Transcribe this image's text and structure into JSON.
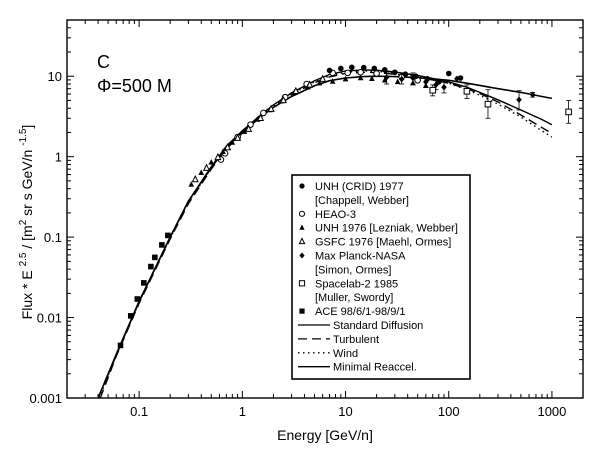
{
  "chart_data": {
    "type": "scatter",
    "x_scale": "log",
    "y_scale": "log",
    "xlim": [
      0.02,
      2000
    ],
    "ylim": [
      0.001,
      50
    ],
    "grid": false,
    "xlabel": "Energy [GeV/n]",
    "ylabel": {
      "pre": "Flux * E ",
      "exp1": "2.5",
      "mid": " / [m",
      "exp2": "2",
      "post": " sr s GeV/n ",
      "exp3": "-1.5",
      "close": "]"
    },
    "x_ticks": [
      {
        "value": 0.1,
        "label": "0.1"
      },
      {
        "value": 1,
        "label": "1"
      },
      {
        "value": 10,
        "label": "10"
      },
      {
        "value": 100,
        "label": "100"
      },
      {
        "value": 1000,
        "label": "1000"
      }
    ],
    "y_ticks": [
      {
        "value": 0.001,
        "label": "0.001"
      },
      {
        "value": 0.01,
        "label": "0.01"
      },
      {
        "value": 0.1,
        "label": "0.1"
      },
      {
        "value": 1,
        "label": "1"
      },
      {
        "value": 10,
        "label": "10"
      }
    ],
    "annotations": {
      "element": "C",
      "phi_symbol": "Φ",
      "phi_value": "=500 M"
    },
    "legend_position": "lower-right",
    "legend": [
      {
        "label": "UNH (CRID) 1977",
        "marker": "circle-filled"
      },
      {
        "label": "[Chappell, Webber]",
        "marker": "none"
      },
      {
        "label": "HEAO-3",
        "marker": "circle-open"
      },
      {
        "label": "UNH 1976 [Lezniak, Webber]",
        "marker": "triangle-filled"
      },
      {
        "label": "GSFC 1976 [Maehl, Ormes]",
        "marker": "triangle-open"
      },
      {
        "label": "Max Planck-NASA",
        "marker": "diamond-filled"
      },
      {
        "label": "[Simon, Ormes]",
        "marker": "none"
      },
      {
        "label": "Spacelab-2 1985",
        "marker": "square-open"
      },
      {
        "label": "[Muller, Swordy]",
        "marker": "none"
      },
      {
        "label": "ACE 98/6/1-98/9/1",
        "marker": "square-filled"
      },
      {
        "label": "Standard Diffusion",
        "marker": "line-solid"
      },
      {
        "label": "Turbulent",
        "marker": "line-dashed"
      },
      {
        "label": "Wind",
        "marker": "line-dotted"
      },
      {
        "label": "Minimal Reaccel.",
        "marker": "line-solid"
      }
    ],
    "series": [
      {
        "marker": "square-filled",
        "points": [
          [
            0.066,
            0.0045
          ],
          [
            0.083,
            0.0105
          ],
          [
            0.096,
            0.017
          ],
          [
            0.111,
            0.027
          ],
          [
            0.13,
            0.043
          ],
          [
            0.142,
            0.056
          ],
          [
            0.166,
            0.08
          ],
          [
            0.19,
            0.105
          ]
        ]
      },
      {
        "marker": "circle-open",
        "points": [
          [
            0.62,
            0.92
          ],
          [
            0.68,
            1.1
          ],
          [
            0.9,
            1.75
          ],
          [
            1.2,
            2.5
          ],
          [
            1.6,
            3.5
          ],
          [
            2.6,
            5.5
          ],
          [
            4.2,
            8
          ],
          [
            7.5,
            11
          ],
          [
            10.5,
            11
          ],
          [
            14,
            11.2
          ],
          [
            20,
            10.8
          ],
          [
            35,
            9.8
          ],
          [
            50,
            8.9
          ]
        ]
      },
      {
        "marker": "triangle-filled",
        "points": [
          [
            0.32,
            0.45
          ],
          [
            0.4,
            0.63
          ],
          [
            0.5,
            0.85
          ],
          [
            0.65,
            1.15
          ],
          [
            0.8,
            1.5
          ],
          [
            1.05,
            2.05
          ],
          [
            1.4,
            2.9
          ],
          [
            1.85,
            3.8
          ],
          [
            2.4,
            4.9
          ],
          [
            3.2,
            6.3
          ],
          [
            4.3,
            7.3
          ],
          [
            5.6,
            8.2
          ],
          [
            7.5,
            8.6
          ],
          [
            10,
            9.2
          ],
          [
            14,
            9.5
          ],
          [
            18,
            9.3
          ],
          [
            24,
            8.9
          ],
          [
            32,
            8.5
          ],
          [
            45,
            8.2
          ],
          [
            60,
            7.6
          ]
        ]
      },
      {
        "marker": "triangle-open",
        "points": [
          [
            0.35,
            0.52
          ],
          [
            0.45,
            0.72
          ],
          [
            0.58,
            0.98
          ],
          [
            0.72,
            1.3
          ],
          [
            0.9,
            1.7
          ],
          [
            1.15,
            2.2
          ],
          [
            1.5,
            3
          ],
          [
            1.9,
            3.9
          ],
          [
            2.5,
            5
          ],
          [
            3.3,
            6.5
          ],
          [
            4.5,
            7.8
          ],
          [
            6,
            9.2
          ]
        ]
      },
      {
        "marker": "circle-filled",
        "points": [
          [
            7,
            11.8
          ],
          [
            9,
            12.5
          ],
          [
            11.5,
            12.9
          ],
          [
            15,
            12.8
          ],
          [
            19,
            12.5
          ],
          [
            24,
            12
          ],
          [
            30,
            11.2
          ],
          [
            38,
            10.6
          ],
          [
            48,
            10
          ],
          [
            62,
            9.3
          ],
          [
            80,
            8.5
          ],
          [
            100,
            10.8
          ],
          [
            130,
            9.5
          ]
        ]
      },
      {
        "marker": "diamond-filled",
        "points": [
          [
            25,
            9.7
          ],
          [
            35,
            9.2
          ],
          [
            45,
            9.5
          ],
          [
            60,
            8.5
          ],
          [
            75,
            7.8
          ],
          [
            90,
            7.3
          ],
          [
            120,
            9.3
          ],
          [
            480,
            5.1
          ],
          [
            650,
            5.9
          ]
        ],
        "errors": [
          [
            25,
            8,
            11
          ],
          [
            35,
            8,
            10.5
          ],
          [
            45,
            8,
            11
          ],
          [
            60,
            7.3,
            9.8
          ],
          [
            75,
            6.8,
            8.8
          ],
          [
            90,
            6.2,
            8.5
          ],
          [
            480,
            3.8,
            6.6
          ],
          [
            650,
            5.5,
            6.3
          ]
        ]
      },
      {
        "marker": "square-open",
        "points": [
          [
            70,
            6.7
          ],
          [
            150,
            6.5
          ],
          [
            240,
            4.5
          ],
          [
            1450,
            3.6
          ]
        ],
        "errors": [
          [
            70,
            5.7,
            7.8
          ],
          [
            150,
            5.3,
            7.8
          ],
          [
            240,
            3,
            6.8
          ],
          [
            1450,
            2.6,
            5
          ]
        ]
      }
    ],
    "curves": [
      {
        "name": "Standard Diffusion",
        "style": "solid",
        "points": [
          [
            0.04,
            0.001
          ],
          [
            0.06,
            0.0035
          ],
          [
            0.1,
            0.016
          ],
          [
            0.2,
            0.1
          ],
          [
            0.3,
            0.28
          ],
          [
            0.5,
            0.75
          ],
          [
            0.7,
            1.35
          ],
          [
            1,
            2.1
          ],
          [
            1.5,
            3.3
          ],
          [
            2,
            4.4
          ],
          [
            3,
            6.2
          ],
          [
            5,
            8.8
          ],
          [
            7,
            10.5
          ],
          [
            10,
            11.6
          ],
          [
            15,
            12
          ],
          [
            20,
            11.9
          ],
          [
            30,
            11.3
          ],
          [
            50,
            10.2
          ],
          [
            70,
            9.4
          ],
          [
            100,
            8.5
          ],
          [
            150,
            7.3
          ],
          [
            200,
            6.3
          ],
          [
            300,
            5.1
          ],
          [
            500,
            3.8
          ],
          [
            800,
            2.9
          ],
          [
            1000,
            2.5
          ]
        ]
      },
      {
        "name": "Turbulent",
        "style": "dashed",
        "points": [
          [
            0.042,
            0.001
          ],
          [
            0.06,
            0.0033
          ],
          [
            0.1,
            0.015
          ],
          [
            0.2,
            0.095
          ],
          [
            0.3,
            0.26
          ],
          [
            0.5,
            0.7
          ],
          [
            0.7,
            1.25
          ],
          [
            1,
            1.95
          ],
          [
            1.5,
            3.1
          ],
          [
            2,
            4.1
          ],
          [
            3,
            5.9
          ],
          [
            5,
            8.3
          ],
          [
            7,
            9.8
          ],
          [
            10,
            10.8
          ],
          [
            15,
            11.2
          ],
          [
            20,
            11.1
          ],
          [
            30,
            10.6
          ],
          [
            50,
            9.7
          ],
          [
            70,
            9
          ],
          [
            100,
            8.2
          ],
          [
            150,
            7
          ],
          [
            200,
            6.1
          ],
          [
            300,
            4.8
          ],
          [
            500,
            3.3
          ],
          [
            800,
            2.3
          ],
          [
            1000,
            1.95
          ]
        ]
      },
      {
        "name": "Wind",
        "style": "dotted",
        "points": [
          [
            0.041,
            0.001
          ],
          [
            0.06,
            0.0034
          ],
          [
            0.1,
            0.0155
          ],
          [
            0.2,
            0.098
          ],
          [
            0.3,
            0.27
          ],
          [
            0.5,
            0.72
          ],
          [
            0.7,
            1.3
          ],
          [
            1,
            2
          ],
          [
            1.5,
            3.2
          ],
          [
            2,
            4.2
          ],
          [
            3,
            6
          ],
          [
            5,
            8.5
          ],
          [
            7,
            10.1
          ],
          [
            10,
            11.2
          ],
          [
            15,
            11.6
          ],
          [
            20,
            11.5
          ],
          [
            30,
            11
          ],
          [
            50,
            9.9
          ],
          [
            70,
            9.1
          ],
          [
            100,
            8.2
          ],
          [
            150,
            6.8
          ],
          [
            200,
            5.8
          ],
          [
            300,
            4.5
          ],
          [
            500,
            3.1
          ],
          [
            800,
            2.1
          ],
          [
            1000,
            1.75
          ]
        ]
      },
      {
        "name": "Minimal Reaccel.",
        "style": "solid",
        "points": [
          [
            0.04,
            0.001
          ],
          [
            0.06,
            0.0034
          ],
          [
            0.1,
            0.0158
          ],
          [
            0.2,
            0.1
          ],
          [
            0.3,
            0.28
          ],
          [
            0.5,
            0.73
          ],
          [
            0.7,
            1.3
          ],
          [
            1,
            2
          ],
          [
            1.5,
            3.1
          ],
          [
            2,
            4.1
          ],
          [
            3,
            5.6
          ],
          [
            5,
            7.6
          ],
          [
            7,
            8.8
          ],
          [
            10,
            9.5
          ],
          [
            15,
            9.9
          ],
          [
            20,
            10
          ],
          [
            30,
            9.9
          ],
          [
            50,
            9.6
          ],
          [
            70,
            9.3
          ],
          [
            100,
            8.9
          ],
          [
            150,
            8.2
          ],
          [
            200,
            7.7
          ],
          [
            300,
            7
          ],
          [
            500,
            6.3
          ],
          [
            800,
            5.6
          ],
          [
            1000,
            5.3
          ]
        ]
      }
    ]
  }
}
